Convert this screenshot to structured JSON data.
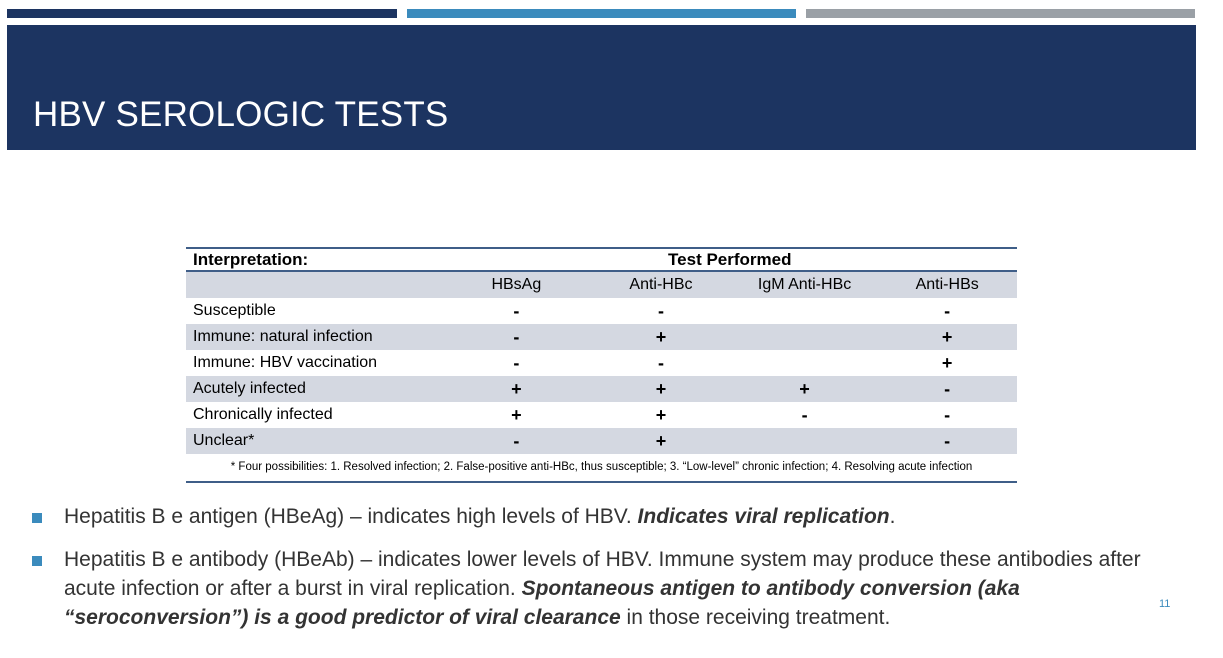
{
  "slide": {
    "title": "HBV SEROLOGIC TESTS",
    "page_number": "11",
    "accent_colors": [
      "#1c3461",
      "#3b8bbd",
      "#9aa0a6"
    ]
  },
  "table": {
    "interpretation_header": "Interpretation:",
    "test_performed_header": "Test Performed",
    "columns": [
      "HBsAg",
      "Anti-HBc",
      "IgM Anti-HBc",
      "Anti-HBs"
    ],
    "rows": [
      {
        "label": "Susceptible",
        "values": [
          "-",
          "-",
          "",
          "-"
        ]
      },
      {
        "label": "Immune: natural infection",
        "values": [
          "-",
          "+",
          "",
          "+"
        ]
      },
      {
        "label": "Immune: HBV vaccination",
        "values": [
          "-",
          "-",
          "",
          "+"
        ]
      },
      {
        "label": "Acutely infected",
        "values": [
          "+",
          "+",
          "+",
          "-"
        ]
      },
      {
        "label": "Chronically infected",
        "values": [
          "+",
          "+",
          "-",
          "-"
        ]
      },
      {
        "label": "Unclear*",
        "values": [
          "-",
          "+",
          "",
          "-"
        ]
      }
    ],
    "footnote": "* Four possibilities: 1. Resolved infection; 2. False-positive anti-HBc, thus susceptible; 3. “Low-level” chronic infection; 4. Resolving acute infection"
  },
  "bullets": [
    {
      "text1": "Hepatitis B e antigen (HBeAg) – indicates high levels of HBV.  ",
      "emph": "Indicates viral replication",
      "text2": "."
    },
    {
      "text1": "Hepatitis B e antibody (HBeAb) – indicates lower levels of HBV. Immune system may produce these antibodies after acute infection or after a burst in viral replication. ",
      "emph": "Spontaneous antigen to antibody conversion (aka “seroconversion”) is a good predictor of viral clearance",
      "text2": " in those receiving treatment."
    }
  ]
}
